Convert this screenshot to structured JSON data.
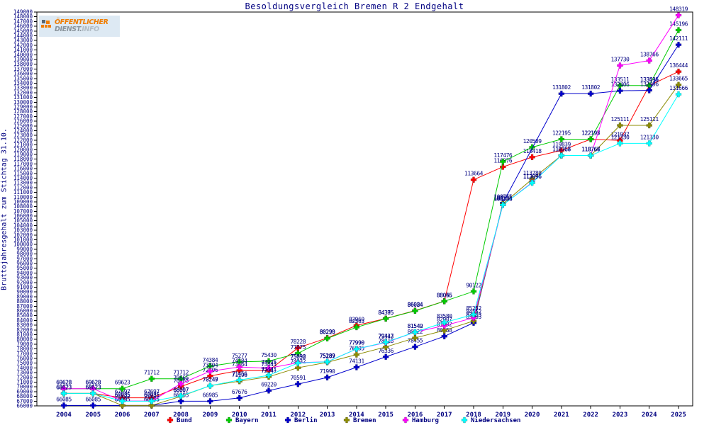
{
  "header": {
    "title": "Besoldungsvergleich Bremen R 2 Endgehalt",
    "logo": {
      "line1": "ÖFFENTLICHER",
      "line2": "DIENST.",
      "line2b": "INFO"
    }
  },
  "axes": {
    "y_label": "Bruttojahresgehalt zum Stichtag 31.10.",
    "y_min": 66000,
    "y_max": 149000,
    "y_step": 1000,
    "x_first": 2004,
    "x_last": 2025
  },
  "colors": {
    "text": "#000080",
    "axis": "#000000",
    "logo_orange": "#f07d00",
    "logo_gray": "#8a949c"
  },
  "chart_data": {
    "type": "line",
    "title": "Besoldungsvergleich Bremen R 2 Endgehalt",
    "xlabel": "",
    "ylabel": "Bruttojahresgehalt zum Stichtag 31.10.",
    "ylim": [
      66000,
      149000
    ],
    "grid": false,
    "legend_position": "bottom",
    "x": [
      2004,
      2005,
      2006,
      2007,
      2008,
      2009,
      2010,
      2011,
      2012,
      2013,
      2014,
      2015,
      2016,
      2017,
      2018,
      2019,
      2020,
      2021,
      2022,
      2023,
      2024,
      2025
    ],
    "series": [
      {
        "name": "Bund",
        "color": "#ff0000",
        "values": [
          68623,
          68623,
          67697,
          67697,
          70065,
          72306,
          73464,
          73441,
          78228,
          80299,
          82960,
          84395,
          86084,
          88055,
          113664,
          116376,
          118418,
          119839,
          122197,
          121937,
          133496,
          136444
        ]
      },
      {
        "name": "Bayern",
        "color": "#00cc00",
        "values": [
          69628,
          69628,
          69623,
          71712,
          71712,
          74384,
          75277,
          75430,
          77075,
          80220,
          82563,
          84375,
          86024,
          88046,
          90122,
          117476,
          120509,
          122195,
          122195,
          133511,
          133511,
          145196
        ]
      },
      {
        "name": "Berlin",
        "color": "#0000cc",
        "values": [
          66085,
          66085,
          66085,
          66085,
          66985,
          66985,
          67676,
          69220,
          70591,
          71990,
          74131,
          76336,
          78455,
          80658,
          83503,
          108755,
          null,
          131802,
          131802,
          132406,
          132496,
          142111
        ]
      },
      {
        "name": "Bremen",
        "color": "#8b8b00",
        "values": [
          68623,
          68623,
          66085,
          66085,
          68007,
          70247,
          71196,
          72141,
          74032,
          75187,
          76805,
          78418,
          80322,
          81902,
          83903,
          108555,
          113789,
          118767,
          118767,
          125111,
          125111,
          133665
        ]
      },
      {
        "name": "Hamburg",
        "color": "#ff00ff",
        "values": [
          69628,
          69628,
          67035,
          67035,
          70665,
          73304,
          74184,
          73925,
          75098,
          75289,
          77990,
          79343,
          81542,
          82907,
          84552,
          108356,
          113096,
          118767,
          118767,
          137730,
          138766,
          148319
        ]
      },
      {
        "name": "Niedersachsen",
        "color": "#00ffff",
        "values": [
          68623,
          68623,
          66985,
          66985,
          68097,
          70249,
          71456,
          72441,
          75032,
          75289,
          77990,
          79417,
          81549,
          83580,
          85252,
          108356,
          112996,
          118766,
          118766,
          121330,
          121330,
          131666
        ]
      }
    ]
  }
}
